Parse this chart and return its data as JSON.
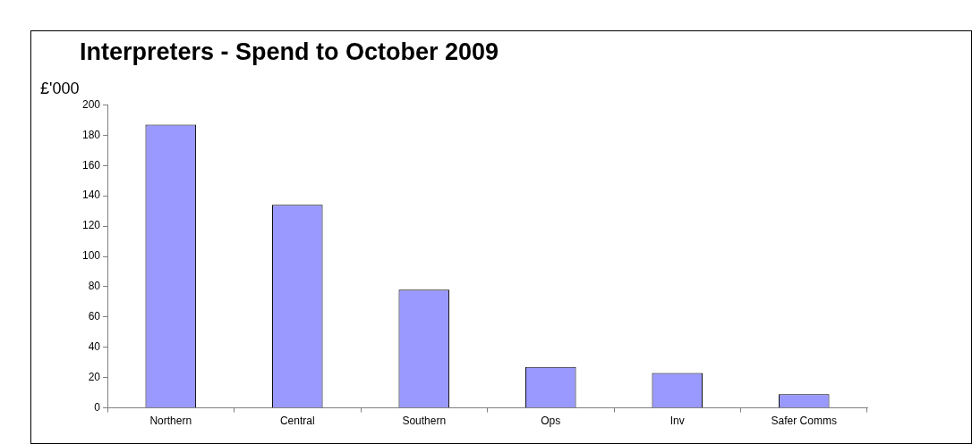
{
  "chart_data": {
    "type": "bar",
    "title": "Interpreters - Spend to October 2009",
    "ylabel": "£'000",
    "categories": [
      "Northern",
      "Central",
      "Southern",
      "Ops",
      "Inv",
      "Safer Comms"
    ],
    "values": [
      187,
      134,
      78,
      27,
      23,
      9
    ],
    "color": "#9999ff",
    "ylim": [
      0,
      200
    ],
    "yticks": [
      0,
      20,
      40,
      60,
      80,
      100,
      120,
      140,
      160,
      180,
      200
    ],
    "grid": false,
    "legend": false
  }
}
